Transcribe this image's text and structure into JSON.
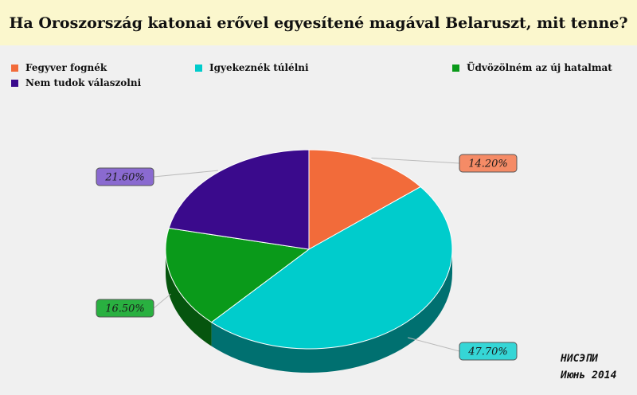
{
  "header": {
    "title": "Ha Oroszország katonai erővel egyesítené magával Belaruszt, mit tenne?"
  },
  "legend": {
    "placement": "top",
    "items": [
      {
        "label": "Fegyver fognék",
        "color": "#f26b3a"
      },
      {
        "label": "Igyekeznék túlélni",
        "color": "#00cccc"
      },
      {
        "label": "Üdvözölném az új hatalmat",
        "color": "#0a9a1a"
      },
      {
        "label": "Nem tudok válaszolni",
        "color": "#3a0a8c"
      }
    ]
  },
  "source": {
    "line1": "НИСЭПИ",
    "line2": "Июнь 2014"
  },
  "chart_data": {
    "type": "pie",
    "title": "Ha Oroszország katonai erővel egyesítené magával Belaruszt, mit tenne?",
    "categories": [
      "Fegyver fognék",
      "Igyekeznék túlélni",
      "Üdvözölném az új hatalmat",
      "Nem tudok válaszolni"
    ],
    "values": [
      14.2,
      47.7,
      16.5,
      21.6
    ],
    "value_labels": [
      "14.20%",
      "47.70%",
      "16.50%",
      "21.60%"
    ],
    "colors": [
      "#f26b3a",
      "#00cccc",
      "#0a9a1a",
      "#3a0a8c"
    ],
    "label_colors": [
      "#f58b66",
      "#35d6d6",
      "#29b040",
      "#8a6ad0"
    ],
    "legend_placement": "top",
    "three_d": true
  }
}
